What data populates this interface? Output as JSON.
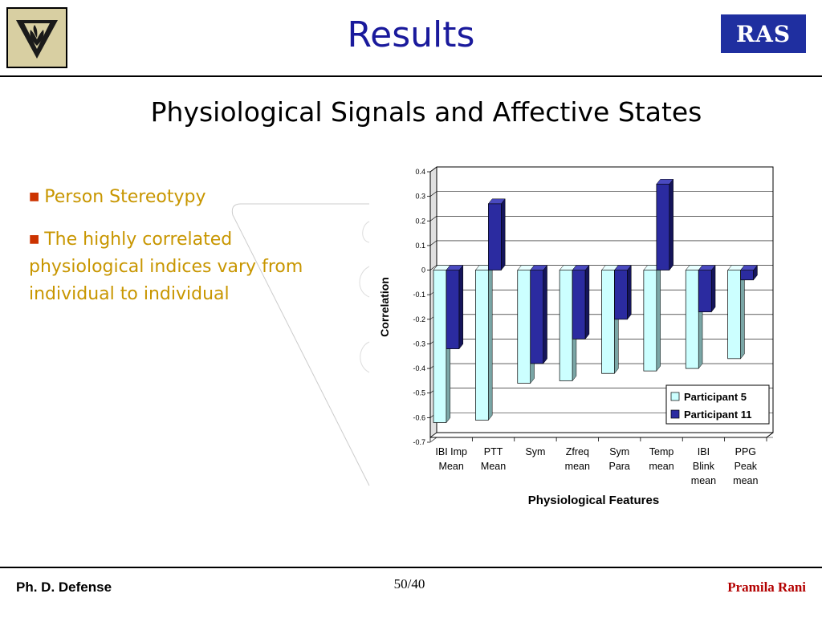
{
  "header": {
    "title": "Results",
    "badge": "RAS"
  },
  "subtitle": "Physiological Signals and Affective States",
  "bullets": [
    "Person Stereotypy",
    "The highly correlated physiological indices vary from individual to individual"
  ],
  "footer": {
    "left": "Ph. D. Defense",
    "center": "50/40",
    "right": "Pramila Rani"
  },
  "colors": {
    "title": "#1a1a9c",
    "series1": "#ccffff",
    "series2": "#2b2ba0",
    "footer_right": "#b30000"
  },
  "chart_data": {
    "type": "bar",
    "ylabel": "Correlation",
    "xlabel": "Physiological Features",
    "ylim": [
      -0.7,
      0.4
    ],
    "yticks": [
      0.4,
      0.3,
      0.2,
      0.1,
      0,
      -0.1,
      -0.2,
      -0.3,
      -0.4,
      -0.5,
      -0.6,
      -0.7
    ],
    "grid": true,
    "legend_position": "bottom-right",
    "categories": [
      [
        "IBI Imp",
        "Mean"
      ],
      [
        "PTT",
        "Mean"
      ],
      [
        "Sym"
      ],
      [
        "Zfreq",
        "mean"
      ],
      [
        "Sym",
        "Para"
      ],
      [
        "Temp",
        "mean"
      ],
      [
        "IBI",
        "Blink",
        "mean"
      ],
      [
        "PPG",
        "Peak",
        "mean"
      ]
    ],
    "series": [
      {
        "name": "Participant 5",
        "values": [
          -0.62,
          -0.61,
          -0.46,
          -0.45,
          -0.42,
          -0.41,
          -0.4,
          -0.36
        ]
      },
      {
        "name": "Participant 11",
        "values": [
          -0.32,
          0.27,
          -0.38,
          -0.28,
          -0.2,
          0.35,
          -0.17,
          -0.04
        ]
      }
    ]
  }
}
